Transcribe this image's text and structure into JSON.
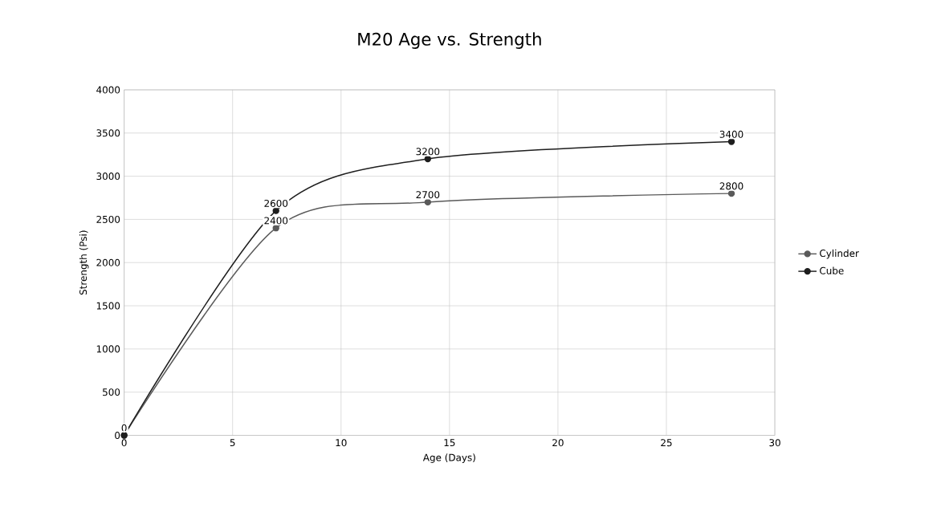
{
  "chart_data": {
    "type": "line",
    "title": "M20 Age vs. Strength",
    "xlabel": "Age (Days)",
    "ylabel": "Strength (Psi)",
    "x": [
      0,
      7,
      14,
      28
    ],
    "series": [
      {
        "name": "Cylinder",
        "color": "#5a5a5a",
        "values": [
          0,
          2400,
          2700,
          2800
        ],
        "value_labels": [
          "0",
          "2400",
          "2700",
          "2800"
        ]
      },
      {
        "name": "Cube",
        "color": "#1e1e1e",
        "values": [
          0,
          2600,
          3200,
          3400
        ],
        "value_labels": [
          null,
          "2600",
          "3200",
          "3400"
        ]
      }
    ],
    "xlim": [
      0,
      30
    ],
    "xticks": [
      0,
      5,
      10,
      15,
      20,
      25,
      30
    ],
    "ylim": [
      0,
      4000
    ],
    "yticks": [
      0,
      500,
      1000,
      1500,
      2000,
      2500,
      3000,
      3500,
      4000
    ],
    "grid": true,
    "legend": "right",
    "marker": "circle",
    "line_style": "solid"
  }
}
